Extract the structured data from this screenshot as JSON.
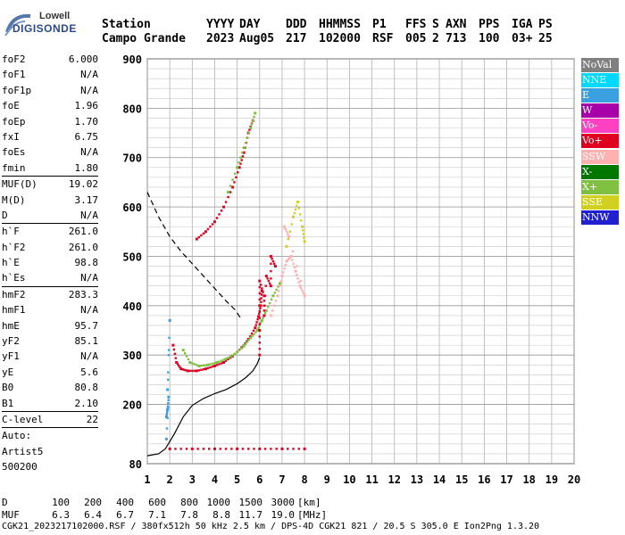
{
  "logo": {
    "line1": "Lowell",
    "line2": "DIGISONDE"
  },
  "header": {
    "labels": [
      "Station",
      "YYYY",
      "DAY",
      "DDD",
      "HHMMSS",
      "P1",
      "FFS",
      "S",
      "AXN",
      "PPS",
      "IGA",
      "PS"
    ],
    "values": [
      "Campo Grande",
      "2023",
      "Aug05",
      "217",
      "102000",
      "RSF",
      "005",
      "2",
      "713",
      "100",
      "03+",
      "25"
    ]
  },
  "params": {
    "group1": [
      {
        "name": "foF2",
        "value": "6.000"
      },
      {
        "name": "foF1",
        "value": "N/A"
      },
      {
        "name": "foF1p",
        "value": "N/A"
      },
      {
        "name": "foE",
        "value": "1.96"
      },
      {
        "name": "foEp",
        "value": "1.70"
      },
      {
        "name": "fxI",
        "value": "6.75"
      },
      {
        "name": "foEs",
        "value": "N/A"
      },
      {
        "name": "fmin",
        "value": "1.80"
      }
    ],
    "group2": [
      {
        "name": "MUF(D)",
        "value": "19.02"
      },
      {
        "name": "M(D)",
        "value": "3.17"
      },
      {
        "name": "D",
        "value": "N/A"
      }
    ],
    "group3": [
      {
        "name": "h`F",
        "value": "261.0"
      },
      {
        "name": "h`F2",
        "value": "261.0"
      },
      {
        "name": "h`E",
        "value": "98.8"
      },
      {
        "name": "h`Es",
        "value": "N/A"
      }
    ],
    "group4": [
      {
        "name": "hmF2",
        "value": "283.3"
      },
      {
        "name": "hmF1",
        "value": "N/A"
      },
      {
        "name": "hmE",
        "value": "95.7"
      },
      {
        "name": "yF2",
        "value": "85.1"
      },
      {
        "name": "yF1",
        "value": "N/A"
      },
      {
        "name": "yE",
        "value": "5.6"
      },
      {
        "name": "B0",
        "value": "80.8"
      },
      {
        "name": "B1",
        "value": "2.10"
      }
    ],
    "group5": [
      {
        "name": "C-level",
        "value": "22"
      }
    ],
    "auto_lines": [
      "Auto:",
      "Artist5",
      "500200"
    ]
  },
  "legend": [
    {
      "label": "NoVal",
      "color": "#808080"
    },
    {
      "label": "NNE",
      "color": "#00d8ff"
    },
    {
      "label": "E",
      "color": "#3aa0e0"
    },
    {
      "label": "W",
      "color": "#a800a8"
    },
    {
      "label": "Vo-",
      "color": "#ff40c0"
    },
    {
      "label": "Vo+",
      "color": "#e00020"
    },
    {
      "label": "SSW",
      "color": "#ffb0b0"
    },
    {
      "label": "X-",
      "color": "#007800"
    },
    {
      "label": "X+",
      "color": "#80c040"
    },
    {
      "label": "SSE",
      "color": "#d0d020"
    },
    {
      "label": "NNW",
      "color": "#2020d0"
    }
  ],
  "chart_data": {
    "type": "scatter",
    "title": "",
    "xlabel": "",
    "ylabel": "",
    "xlim": [
      1,
      20
    ],
    "ylim": [
      80,
      900
    ],
    "x_ticks": [
      1,
      2,
      3,
      4,
      5,
      6,
      7,
      8,
      9,
      10,
      11,
      12,
      13,
      14,
      15,
      16,
      17,
      18,
      19,
      20
    ],
    "y_ticks": [
      80,
      200,
      300,
      400,
      500,
      600,
      700,
      800,
      900
    ],
    "grid": true,
    "legend_position": "right",
    "traces": [
      {
        "name": "O-trace (Vo+)",
        "color": "#e00020",
        "points": [
          [
            2.15,
            320
          ],
          [
            2.3,
            285
          ],
          [
            2.5,
            272
          ],
          [
            2.8,
            268
          ],
          [
            3.2,
            268
          ],
          [
            3.6,
            272
          ],
          [
            4.0,
            278
          ],
          [
            4.4,
            285
          ],
          [
            4.8,
            298
          ],
          [
            5.2,
            315
          ],
          [
            5.5,
            332
          ],
          [
            5.8,
            355
          ],
          [
            5.95,
            378
          ],
          [
            6.05,
            400
          ],
          [
            6.1,
            430
          ]
        ]
      },
      {
        "name": "X-trace (X+)",
        "color": "#80c040",
        "points": [
          [
            2.6,
            310
          ],
          [
            2.9,
            285
          ],
          [
            3.3,
            278
          ],
          [
            3.7,
            280
          ],
          [
            4.1,
            285
          ],
          [
            4.5,
            292
          ],
          [
            4.9,
            302
          ],
          [
            5.3,
            318
          ],
          [
            5.6,
            335
          ],
          [
            5.9,
            350
          ],
          [
            6.1,
            370
          ],
          [
            6.3,
            390
          ],
          [
            6.6,
            420
          ],
          [
            6.9,
            445
          ]
        ]
      },
      {
        "name": "Oblique F (SSW)",
        "color": "#ffb0b0",
        "points": [
          [
            6.5,
            380
          ],
          [
            6.8,
            420
          ],
          [
            7.0,
            460
          ],
          [
            7.2,
            490
          ],
          [
            7.4,
            500
          ],
          [
            7.6,
            470
          ],
          [
            7.8,
            440
          ],
          [
            8.0,
            420
          ],
          [
            7.3,
            540
          ],
          [
            7.1,
            560
          ]
        ]
      },
      {
        "name": "Multiple (Vo+)",
        "color": "#e00020",
        "points": [
          [
            3.2,
            535
          ],
          [
            3.6,
            550
          ],
          [
            4.0,
            570
          ],
          [
            4.4,
            600
          ],
          [
            4.8,
            640
          ],
          [
            5.1,
            680
          ],
          [
            5.3,
            710
          ],
          [
            5.5,
            750
          ],
          [
            5.7,
            775
          ]
        ]
      },
      {
        "name": "Multiple (X+)",
        "color": "#80c040",
        "points": [
          [
            4.6,
            630
          ],
          [
            5.0,
            680
          ],
          [
            5.3,
            720
          ],
          [
            5.6,
            760
          ],
          [
            5.8,
            790
          ]
        ]
      },
      {
        "name": "Vertical spread (Vo+)",
        "color": "#e00020",
        "points": [
          [
            6.0,
            300
          ],
          [
            6.0,
            350
          ],
          [
            6.0,
            400
          ],
          [
            6.0,
            450
          ],
          [
            6.2,
            420
          ],
          [
            6.2,
            380
          ],
          [
            6.3,
            460
          ],
          [
            6.5,
            440
          ],
          [
            6.5,
            500
          ],
          [
            6.7,
            480
          ]
        ]
      },
      {
        "name": "Yellow (SSE)",
        "color": "#d0d020",
        "points": [
          [
            7.2,
            520
          ],
          [
            7.5,
            580
          ],
          [
            7.7,
            610
          ],
          [
            7.9,
            560
          ],
          [
            8.0,
            530
          ]
        ]
      },
      {
        "name": "Low band E-layer",
        "color": "#e00020",
        "points": [
          [
            2.0,
            110
          ],
          [
            3.0,
            110
          ],
          [
            4.0,
            110
          ],
          [
            5.0,
            110
          ],
          [
            6.0,
            110
          ],
          [
            7.0,
            110
          ],
          [
            8.0,
            110
          ]
        ]
      },
      {
        "name": "Low echoes",
        "color": "#3aa0e0",
        "points": [
          [
            1.85,
            175
          ],
          [
            1.9,
            190
          ],
          [
            1.95,
            215
          ],
          [
            1.85,
            130
          ],
          [
            2.0,
            370
          ],
          [
            1.9,
            230
          ]
        ]
      }
    ],
    "profile": {
      "color": "#000000",
      "points": [
        [
          1.0,
          96
        ],
        [
          1.5,
          100
        ],
        [
          1.8,
          110
        ],
        [
          2.2,
          140
        ],
        [
          2.6,
          175
        ],
        [
          3.0,
          198
        ],
        [
          3.5,
          212
        ],
        [
          4.0,
          222
        ],
        [
          4.5,
          230
        ],
        [
          5.0,
          242
        ],
        [
          5.4,
          255
        ],
        [
          5.7,
          268
        ],
        [
          5.9,
          283
        ],
        [
          6.0,
          295
        ]
      ]
    },
    "dashed_curve": {
      "color": "#000000",
      "points": [
        [
          1.0,
          630
        ],
        [
          1.5,
          580
        ],
        [
          2.0,
          540
        ],
        [
          2.5,
          510
        ],
        [
          3.0,
          485
        ],
        [
          3.5,
          460
        ],
        [
          4.0,
          435
        ],
        [
          4.5,
          410
        ],
        [
          4.9,
          392
        ],
        [
          5.2,
          372
        ]
      ]
    }
  },
  "footer": {
    "d_label": "D",
    "d_values": [
      "100",
      "200",
      "400",
      "600",
      "800",
      "1000",
      "1500",
      "3000",
      "[km]"
    ],
    "muf_label": "MUF",
    "muf_values": [
      "6.3",
      "6.4",
      "6.7",
      "7.1",
      "7.8",
      "8.8",
      "11.7",
      "19.0",
      "[MHz]"
    ],
    "info": "CGK21_2023217102000.RSF / 380fx512h 50 kHz 2.5 km / DPS-4D CGK21 821 / 20.5 S 305.0 E Ion2Png 1.3.20"
  }
}
